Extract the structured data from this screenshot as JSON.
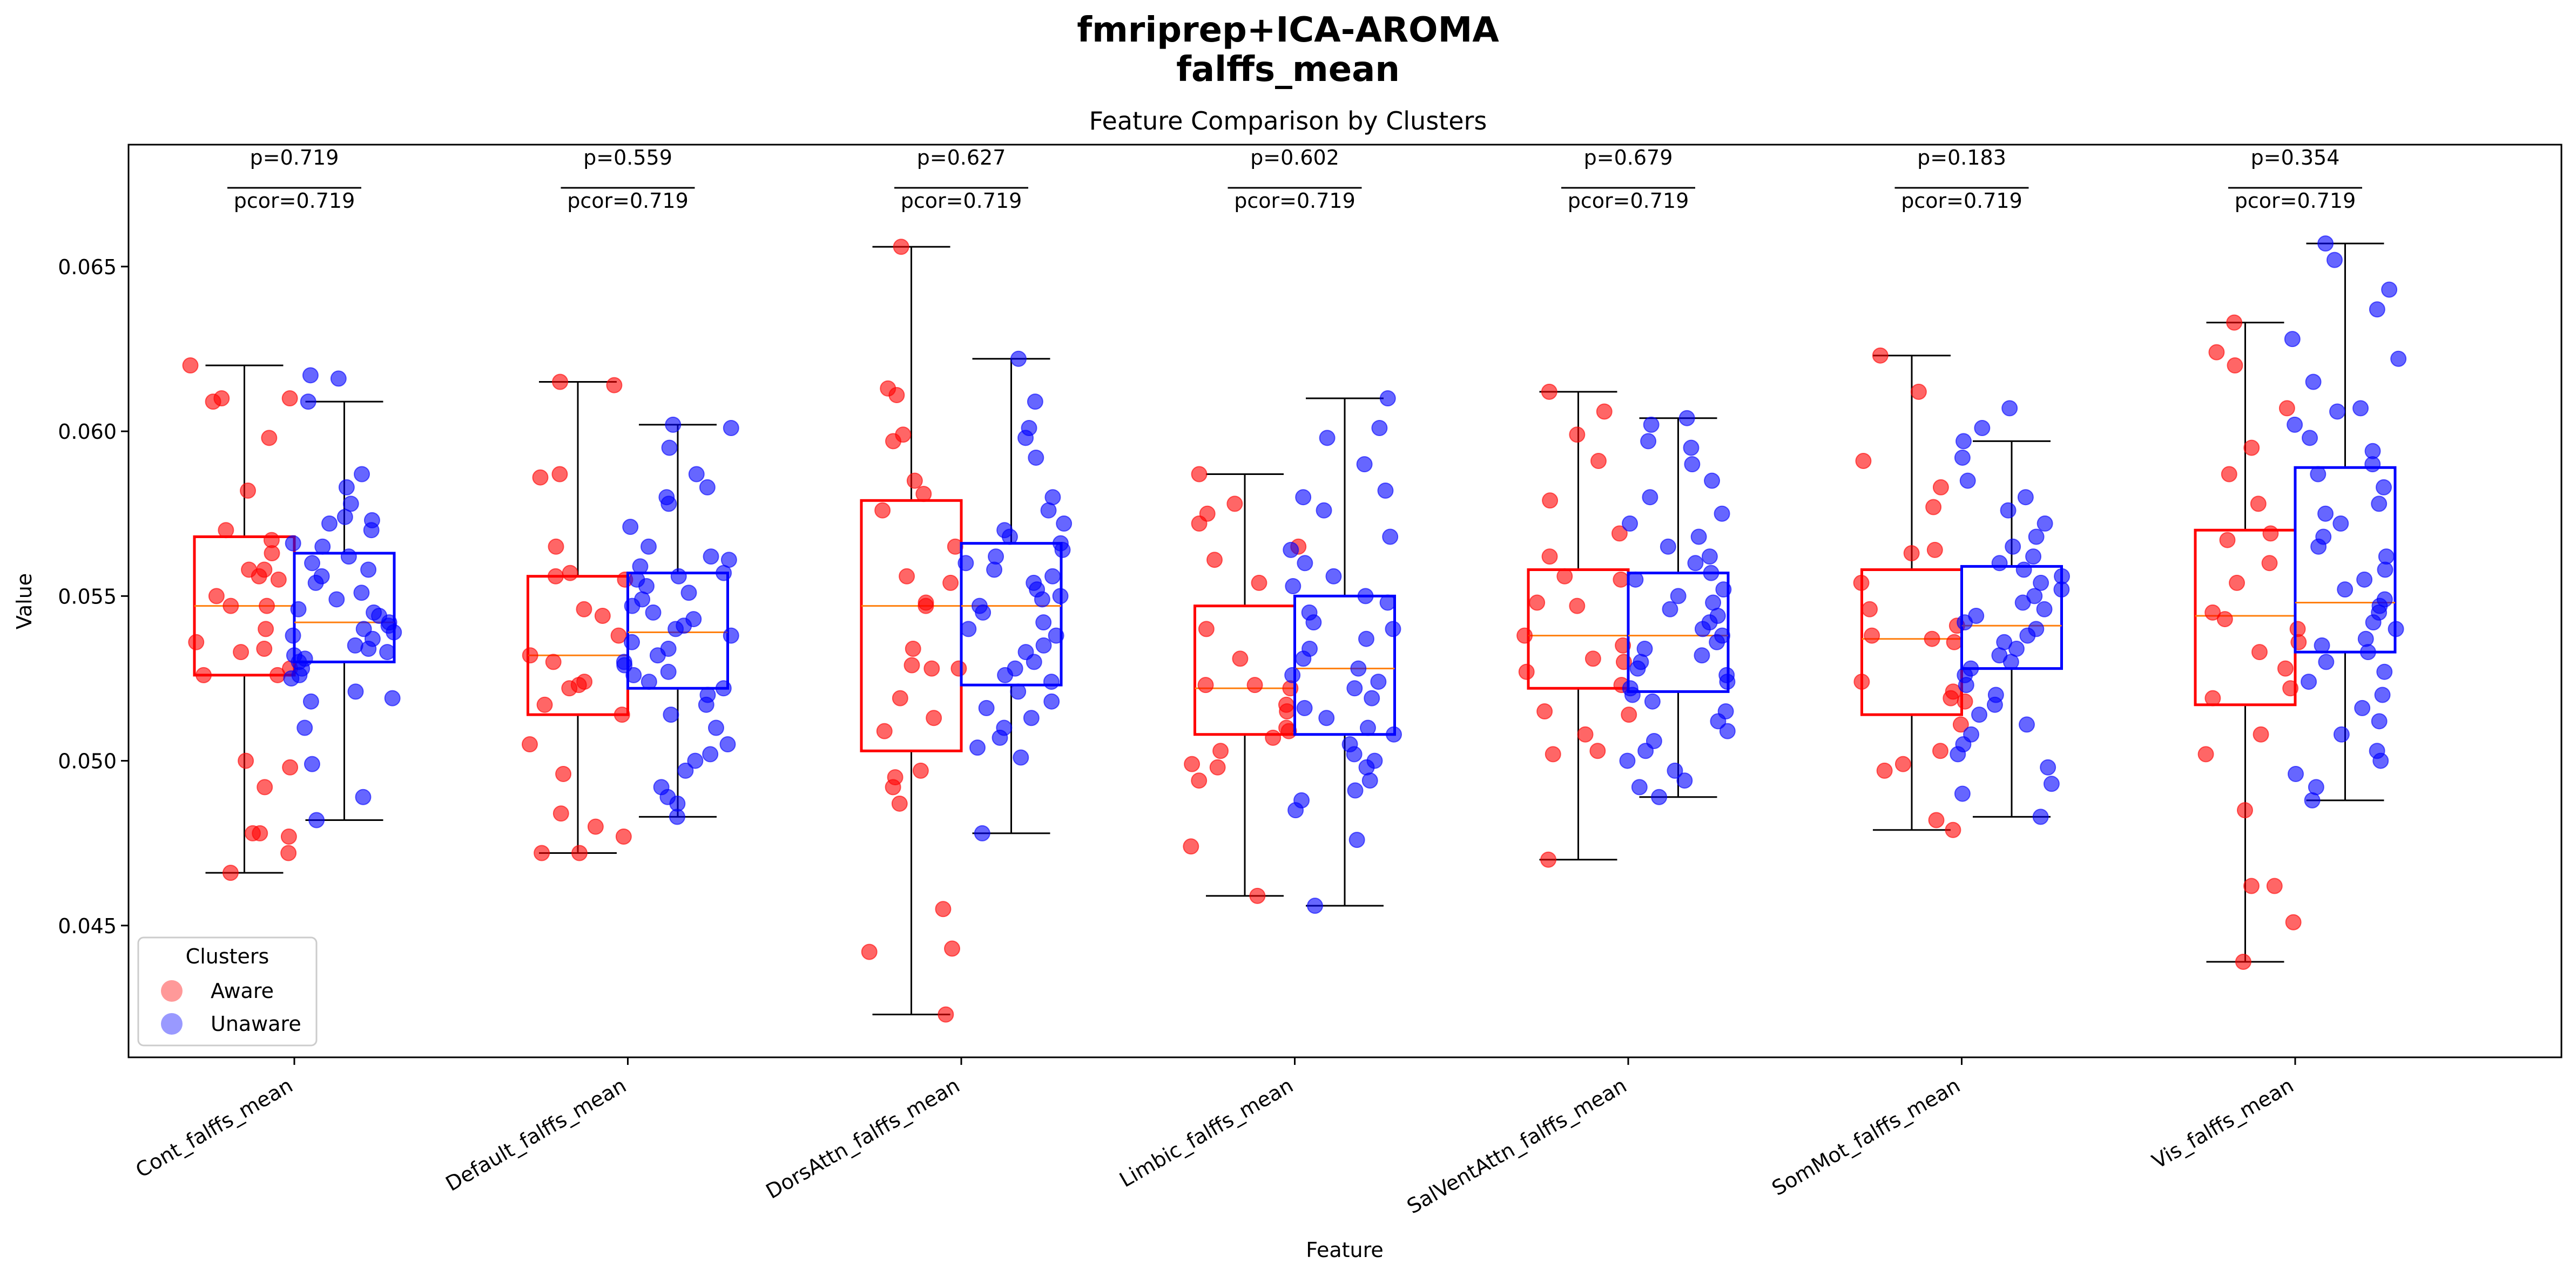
{
  "chart_data": {
    "type": "box",
    "suptitle": "fmriprep+ICA-AROMA",
    "suptitle2": "falffs_mean",
    "title": "Feature Comparison by Clusters",
    "xlabel": "Feature",
    "ylabel": "Value",
    "ylim": [
      0.041,
      0.0687
    ],
    "yticks": [
      0.045,
      0.05,
      0.055,
      0.06,
      0.065
    ],
    "ytick_labels": [
      "0.045",
      "0.050",
      "0.055",
      "0.060",
      "0.065"
    ],
    "grid": false,
    "legend": {
      "title": "Clusters",
      "position": "lower-left",
      "entries": [
        {
          "label": "Aware",
          "color": "#ff0000"
        },
        {
          "label": "Unaware",
          "color": "#0000ff"
        }
      ]
    },
    "colors": {
      "aware": "#ff0000",
      "unaware": "#0000ff",
      "median": "#ff7f0e",
      "whisker": "#000000"
    },
    "categories": [
      "Cont_falffs_mean",
      "Default_falffs_mean",
      "DorsAttn_falffs_mean",
      "Limbic_falffs_mean",
      "SalVentAttn_falffs_mean",
      "SomMot_falffs_mean",
      "Vis_falffs_mean"
    ],
    "annotations": [
      {
        "p": "p=0.719",
        "pcor": "pcor=0.719"
      },
      {
        "p": "p=0.559",
        "pcor": "pcor=0.719"
      },
      {
        "p": "p=0.627",
        "pcor": "pcor=0.719"
      },
      {
        "p": "p=0.602",
        "pcor": "pcor=0.719"
      },
      {
        "p": "p=0.679",
        "pcor": "pcor=0.719"
      },
      {
        "p": "p=0.183",
        "pcor": "pcor=0.719"
      },
      {
        "p": "p=0.354",
        "pcor": "pcor=0.719"
      }
    ],
    "series": [
      {
        "name": "Aware",
        "boxes": [
          {
            "whislo": 0.0466,
            "q1": 0.0526,
            "med": 0.0547,
            "q3": 0.0568,
            "whishi": 0.062
          },
          {
            "whislo": 0.0472,
            "q1": 0.0514,
            "med": 0.0532,
            "q3": 0.0556,
            "whishi": 0.0615
          },
          {
            "whislo": 0.0423,
            "q1": 0.0503,
            "med": 0.0547,
            "q3": 0.0579,
            "whishi": 0.0656
          },
          {
            "whislo": 0.0459,
            "q1": 0.0508,
            "med": 0.0522,
            "q3": 0.0547,
            "whishi": 0.0587
          },
          {
            "whislo": 0.047,
            "q1": 0.0522,
            "med": 0.0538,
            "q3": 0.0558,
            "whishi": 0.0612
          },
          {
            "whislo": 0.0479,
            "q1": 0.0514,
            "med": 0.0537,
            "q3": 0.0558,
            "whishi": 0.0623
          },
          {
            "whislo": 0.0439,
            "q1": 0.0517,
            "med": 0.0544,
            "q3": 0.057,
            "whishi": 0.0633
          }
        ],
        "points": [
          [
            0.062,
            0.061,
            0.061,
            0.0609,
            0.0598,
            0.0582,
            0.057,
            0.0567,
            0.0563,
            0.0558,
            0.0558,
            0.0556,
            0.0555,
            0.055,
            0.0547,
            0.0547,
            0.054,
            0.0536,
            0.0534,
            0.0533,
            0.0528,
            0.0526,
            0.0526,
            0.05,
            0.0498,
            0.0492,
            0.0478,
            0.0478,
            0.0477,
            0.0472,
            0.0466
          ],
          [
            0.0615,
            0.0614,
            0.0587,
            0.0586,
            0.0565,
            0.0557,
            0.0556,
            0.0555,
            0.0546,
            0.0544,
            0.0538,
            0.0532,
            0.053,
            0.0524,
            0.0523,
            0.0522,
            0.0517,
            0.0514,
            0.0505,
            0.0496,
            0.0484,
            0.048,
            0.0477,
            0.0472,
            0.0472
          ],
          [
            0.0656,
            0.0613,
            0.0611,
            0.0599,
            0.0597,
            0.0585,
            0.0581,
            0.0576,
            0.0565,
            0.0556,
            0.0554,
            0.0548,
            0.0547,
            0.0534,
            0.0529,
            0.0528,
            0.0528,
            0.0519,
            0.0513,
            0.0509,
            0.0497,
            0.0495,
            0.0492,
            0.0487,
            0.0455,
            0.0443,
            0.0442,
            0.0423
          ],
          [
            0.0587,
            0.0578,
            0.0575,
            0.0572,
            0.0565,
            0.0561,
            0.0554,
            0.054,
            0.0531,
            0.0523,
            0.0523,
            0.0522,
            0.0517,
            0.0515,
            0.051,
            0.0509,
            0.0507,
            0.0503,
            0.0499,
            0.0498,
            0.0494,
            0.0474,
            0.0459
          ],
          [
            0.0612,
            0.0606,
            0.0599,
            0.0591,
            0.0579,
            0.0569,
            0.0562,
            0.0556,
            0.0555,
            0.0548,
            0.0547,
            0.0538,
            0.0535,
            0.0531,
            0.053,
            0.0527,
            0.0523,
            0.0515,
            0.0514,
            0.0508,
            0.0503,
            0.0502,
            0.047
          ],
          [
            0.0623,
            0.0612,
            0.0591,
            0.0583,
            0.0577,
            0.0564,
            0.0563,
            0.0554,
            0.0546,
            0.0541,
            0.0538,
            0.0537,
            0.0536,
            0.0524,
            0.0521,
            0.0519,
            0.0518,
            0.0511,
            0.0503,
            0.0499,
            0.0497,
            0.0482,
            0.0479
          ],
          [
            0.0633,
            0.0624,
            0.062,
            0.0607,
            0.0595,
            0.0587,
            0.0578,
            0.0569,
            0.0567,
            0.056,
            0.0554,
            0.0545,
            0.0543,
            0.054,
            0.0536,
            0.0533,
            0.0528,
            0.0522,
            0.0519,
            0.0508,
            0.0502,
            0.0485,
            0.0462,
            0.0462,
            0.0451,
            0.0439
          ]
        ]
      },
      {
        "name": "Unaware",
        "boxes": [
          {
            "whislo": 0.0482,
            "q1": 0.053,
            "med": 0.0542,
            "q3": 0.0563,
            "whishi": 0.0609
          },
          {
            "whislo": 0.0483,
            "q1": 0.0522,
            "med": 0.0539,
            "q3": 0.0557,
            "whishi": 0.0602
          },
          {
            "whislo": 0.0478,
            "q1": 0.0523,
            "med": 0.0547,
            "q3": 0.0566,
            "whishi": 0.0622
          },
          {
            "whislo": 0.0456,
            "q1": 0.0508,
            "med": 0.0528,
            "q3": 0.055,
            "whishi": 0.061
          },
          {
            "whislo": 0.0489,
            "q1": 0.0521,
            "med": 0.0538,
            "q3": 0.0557,
            "whishi": 0.0604
          },
          {
            "whislo": 0.0483,
            "q1": 0.0528,
            "med": 0.0541,
            "q3": 0.0559,
            "whishi": 0.0597
          },
          {
            "whislo": 0.0488,
            "q1": 0.0533,
            "med": 0.0548,
            "q3": 0.0589,
            "whishi": 0.0657
          }
        ],
        "points": [
          [
            0.0617,
            0.0616,
            0.0609,
            0.0587,
            0.0583,
            0.0578,
            0.0574,
            0.0573,
            0.0572,
            0.057,
            0.0566,
            0.0565,
            0.0562,
            0.056,
            0.0558,
            0.0556,
            0.0554,
            0.0551,
            0.0549,
            0.0546,
            0.0545,
            0.0544,
            0.0542,
            0.0541,
            0.054,
            0.0539,
            0.0538,
            0.0537,
            0.0535,
            0.0534,
            0.0533,
            0.0532,
            0.0531,
            0.053,
            0.0528,
            0.0526,
            0.0525,
            0.0521,
            0.0519,
            0.0518,
            0.051,
            0.0499,
            0.0489,
            0.0482
          ],
          [
            0.0602,
            0.0601,
            0.0595,
            0.0587,
            0.0583,
            0.058,
            0.0578,
            0.0571,
            0.0565,
            0.0562,
            0.0561,
            0.0559,
            0.0557,
            0.0556,
            0.0555,
            0.0553,
            0.0551,
            0.0549,
            0.0547,
            0.0545,
            0.0543,
            0.0541,
            0.054,
            0.0538,
            0.0536,
            0.0534,
            0.0532,
            0.053,
            0.0529,
            0.0527,
            0.0526,
            0.0524,
            0.0522,
            0.052,
            0.0517,
            0.0514,
            0.051,
            0.0505,
            0.0502,
            0.05,
            0.0497,
            0.0492,
            0.0489,
            0.0487,
            0.0483
          ],
          [
            0.0622,
            0.0609,
            0.0601,
            0.0598,
            0.0592,
            0.058,
            0.0576,
            0.0572,
            0.057,
            0.0568,
            0.0566,
            0.0564,
            0.0562,
            0.056,
            0.0558,
            0.0556,
            0.0554,
            0.0552,
            0.055,
            0.0549,
            0.0547,
            0.0545,
            0.0542,
            0.054,
            0.0538,
            0.0535,
            0.0533,
            0.053,
            0.0528,
            0.0526,
            0.0524,
            0.0521,
            0.0518,
            0.0516,
            0.0513,
            0.051,
            0.0507,
            0.0504,
            0.0501,
            0.0478
          ],
          [
            0.061,
            0.0601,
            0.0598,
            0.059,
            0.0582,
            0.058,
            0.0576,
            0.0568,
            0.0564,
            0.056,
            0.0556,
            0.0553,
            0.055,
            0.0548,
            0.0545,
            0.0542,
            0.054,
            0.0537,
            0.0534,
            0.0531,
            0.0528,
            0.0526,
            0.0524,
            0.0522,
            0.0519,
            0.0516,
            0.0513,
            0.051,
            0.0508,
            0.0505,
            0.0502,
            0.05,
            0.0498,
            0.0494,
            0.0491,
            0.0488,
            0.0485,
            0.0476,
            0.0456
          ],
          [
            0.0604,
            0.0602,
            0.0597,
            0.0595,
            0.059,
            0.0585,
            0.058,
            0.0575,
            0.0572,
            0.0568,
            0.0565,
            0.0562,
            0.056,
            0.0557,
            0.0555,
            0.0552,
            0.055,
            0.0548,
            0.0546,
            0.0544,
            0.0542,
            0.054,
            0.0538,
            0.0536,
            0.0534,
            0.0532,
            0.053,
            0.0528,
            0.0526,
            0.0524,
            0.0522,
            0.052,
            0.0518,
            0.0515,
            0.0512,
            0.0509,
            0.0506,
            0.0503,
            0.05,
            0.0497,
            0.0494,
            0.0492,
            0.0489
          ],
          [
            0.0607,
            0.0601,
            0.0597,
            0.0592,
            0.0585,
            0.058,
            0.0576,
            0.0572,
            0.0568,
            0.0565,
            0.0562,
            0.056,
            0.0558,
            0.0556,
            0.0554,
            0.0552,
            0.055,
            0.0548,
            0.0546,
            0.0544,
            0.0542,
            0.054,
            0.0538,
            0.0536,
            0.0534,
            0.0532,
            0.053,
            0.0528,
            0.0526,
            0.0523,
            0.052,
            0.0517,
            0.0514,
            0.0511,
            0.0508,
            0.0505,
            0.0502,
            0.0498,
            0.0493,
            0.049,
            0.0483
          ],
          [
            0.0657,
            0.0652,
            0.0643,
            0.0637,
            0.0628,
            0.0622,
            0.0615,
            0.0607,
            0.0606,
            0.0602,
            0.0598,
            0.0594,
            0.059,
            0.0587,
            0.0583,
            0.0578,
            0.0575,
            0.0572,
            0.0568,
            0.0565,
            0.0562,
            0.0558,
            0.0555,
            0.0552,
            0.0549,
            0.0547,
            0.0545,
            0.0542,
            0.054,
            0.0537,
            0.0535,
            0.0533,
            0.053,
            0.0527,
            0.0524,
            0.052,
            0.0516,
            0.0512,
            0.0508,
            0.0503,
            0.05,
            0.0496,
            0.0492,
            0.0488
          ]
        ]
      }
    ]
  }
}
